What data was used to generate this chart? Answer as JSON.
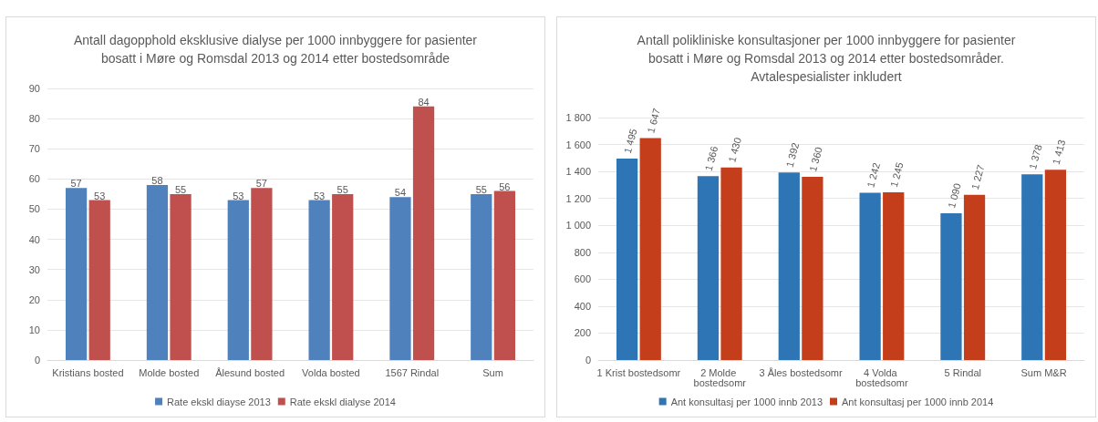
{
  "chart_data": [
    {
      "type": "bar",
      "title": "Antall dagopphold eksklusive dialyse per 1000 innbyggere for pasienter\nbosatt i Møre og Romsdal 2013 og 2014 etter bostedsområde",
      "categories": [
        "Kristians bosted",
        "Molde bosted",
        "Ålesund bosted",
        "Volda bosted",
        "1567 Rindal",
        "Sum"
      ],
      "series": [
        {
          "name": "Rate ekskl diayse 2013",
          "color": "#4f81bd",
          "values": [
            57,
            58,
            53,
            53,
            54,
            55
          ]
        },
        {
          "name": "Rate ekskl dialyse 2014",
          "color": "#c0504d",
          "values": [
            53,
            55,
            57,
            55,
            84,
            56
          ]
        }
      ],
      "ylim": [
        0,
        90
      ],
      "yticks": [
        0,
        10,
        20,
        30,
        40,
        50,
        60,
        70,
        80,
        90
      ],
      "grid": "y",
      "legend": "bottom",
      "data_labels": true
    },
    {
      "type": "bar",
      "title": "Antall polikliniske konsultasjoner per 1000 innbyggere for pasienter\nbosatt i Møre og Romsdal 2013 og 2014 etter bostedsområder.\nAvtalespesialister inkludert",
      "categories": [
        "1 Krist bostedsomr",
        "2 Molde bostedsomr",
        "3 Åles bostedsomr",
        "4 Volda bostedsomr",
        "5 Rindal",
        "Sum M&R"
      ],
      "series": [
        {
          "name": "Ant konsultasj per 1000 innb 2013",
          "color": "#2e75b6",
          "values": [
            1495,
            1366,
            1392,
            1242,
            1090,
            1378
          ],
          "value_labels": [
            "1 495",
            "1 366",
            "1 392",
            "1 242",
            "1 090",
            "1 378"
          ]
        },
        {
          "name": "Ant konsultasj per 1000 innb 2014",
          "color": "#c43e1c",
          "values": [
            1647,
            1430,
            1360,
            1245,
            1227,
            1413
          ],
          "value_labels": [
            "1 647",
            "1 430",
            "1 360",
            "1 245",
            "1 227",
            "1 413"
          ]
        }
      ],
      "ylim": [
        0,
        1800
      ],
      "yticks": [
        0,
        {
          "value": 200,
          "label": "200"
        },
        {
          "value": 400,
          "label": "400"
        },
        {
          "value": 600,
          "label": "600"
        },
        {
          "value": 800,
          "label": "800"
        },
        {
          "value": 1000,
          "label": "1 000"
        },
        {
          "value": 1200,
          "label": "1 200"
        },
        {
          "value": 1400,
          "label": "1 400"
        },
        {
          "value": 1600,
          "label": "1 600"
        },
        {
          "value": 1800,
          "label": "1 800"
        }
      ],
      "grid": "y",
      "legend": "bottom"
    }
  ]
}
